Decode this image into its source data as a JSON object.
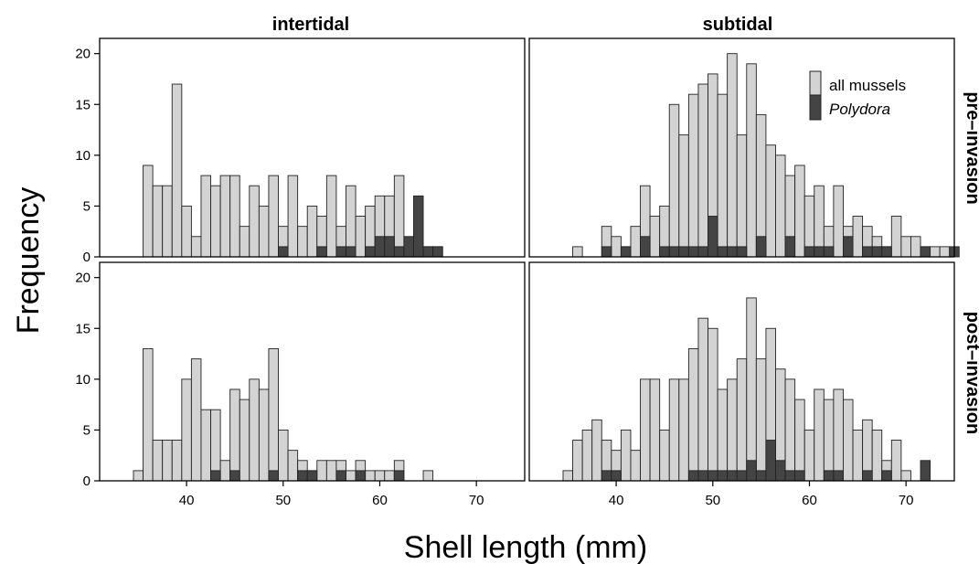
{
  "chart_data": {
    "type": "bar",
    "xlabel": "Shell length (mm)",
    "ylabel": "Frequency",
    "xlim": [
      31,
      75
    ],
    "ylim": [
      0,
      21.5
    ],
    "x_ticks": [
      40,
      50,
      60,
      70
    ],
    "y_ticks": [
      0,
      5,
      10,
      15,
      20
    ],
    "bin_width": 1,
    "column_labels": [
      "intertidal",
      "subtidal"
    ],
    "row_labels": [
      "pre–invasion",
      "post–invasion"
    ],
    "legend": {
      "position": "top-right",
      "entries": [
        {
          "label": "all mussels",
          "color": "#d3d3d3"
        },
        {
          "label": "Polydora",
          "color": "#444444"
        }
      ]
    },
    "colors": {
      "all": "#d3d3d3",
      "polydora": "#444444",
      "border": "#222222"
    },
    "panels": [
      {
        "column": "intertidal",
        "row": "pre–invasion",
        "all_mussels": [
          [
            36,
            9
          ],
          [
            37,
            7
          ],
          [
            38,
            7
          ],
          [
            39,
            17
          ],
          [
            40,
            5
          ],
          [
            41,
            2
          ],
          [
            42,
            8
          ],
          [
            43,
            7
          ],
          [
            44,
            8
          ],
          [
            45,
            8
          ],
          [
            46,
            3
          ],
          [
            47,
            7
          ],
          [
            48,
            5
          ],
          [
            49,
            8
          ],
          [
            50,
            3
          ],
          [
            51,
            8
          ],
          [
            52,
            3
          ],
          [
            53,
            5
          ],
          [
            54,
            4
          ],
          [
            55,
            8
          ],
          [
            56,
            3
          ],
          [
            57,
            7
          ],
          [
            58,
            4
          ],
          [
            59,
            5
          ],
          [
            60,
            6
          ],
          [
            61,
            6
          ],
          [
            62,
            8
          ],
          [
            63,
            1
          ],
          [
            64,
            1
          ],
          [
            65,
            1
          ],
          [
            66,
            1
          ]
        ],
        "polydora": [
          [
            50,
            1
          ],
          [
            54,
            1
          ],
          [
            56,
            1
          ],
          [
            57,
            1
          ],
          [
            59,
            1
          ],
          [
            60,
            2
          ],
          [
            61,
            2
          ],
          [
            62,
            1
          ],
          [
            63,
            2
          ],
          [
            64,
            6
          ],
          [
            65,
            1
          ],
          [
            66,
            1
          ]
        ]
      },
      {
        "column": "subtidal",
        "row": "pre–invasion",
        "all_mussels": [
          [
            36,
            1
          ],
          [
            39,
            3
          ],
          [
            40,
            2
          ],
          [
            41,
            1
          ],
          [
            42,
            3
          ],
          [
            43,
            7
          ],
          [
            44,
            4
          ],
          [
            45,
            5
          ],
          [
            46,
            15
          ],
          [
            47,
            12
          ],
          [
            48,
            16
          ],
          [
            49,
            17
          ],
          [
            50,
            18
          ],
          [
            51,
            16
          ],
          [
            52,
            20
          ],
          [
            53,
            12
          ],
          [
            54,
            19
          ],
          [
            55,
            14
          ],
          [
            56,
            11
          ],
          [
            57,
            10
          ],
          [
            58,
            8
          ],
          [
            59,
            9
          ],
          [
            60,
            6
          ],
          [
            61,
            7
          ],
          [
            62,
            3
          ],
          [
            63,
            7
          ],
          [
            64,
            3
          ],
          [
            65,
            4
          ],
          [
            66,
            3
          ],
          [
            67,
            2
          ],
          [
            68,
            1
          ],
          [
            69,
            4
          ],
          [
            70,
            2
          ],
          [
            71,
            2
          ],
          [
            72,
            1
          ],
          [
            73,
            1
          ],
          [
            74,
            1
          ]
        ],
        "polydora": [
          [
            39,
            1
          ],
          [
            41,
            1
          ],
          [
            43,
            2
          ],
          [
            45,
            1
          ],
          [
            46,
            1
          ],
          [
            47,
            1
          ],
          [
            48,
            1
          ],
          [
            49,
            1
          ],
          [
            50,
            4
          ],
          [
            51,
            1
          ],
          [
            52,
            1
          ],
          [
            53,
            1
          ],
          [
            55,
            2
          ],
          [
            58,
            2
          ],
          [
            60,
            1
          ],
          [
            61,
            1
          ],
          [
            62,
            1
          ],
          [
            64,
            2
          ],
          [
            66,
            1
          ],
          [
            67,
            1
          ],
          [
            68,
            1
          ],
          [
            72,
            1
          ],
          [
            75,
            1
          ]
        ]
      },
      {
        "column": "intertidal",
        "row": "post–invasion",
        "all_mussels": [
          [
            35,
            1
          ],
          [
            36,
            13
          ],
          [
            37,
            4
          ],
          [
            38,
            4
          ],
          [
            39,
            4
          ],
          [
            40,
            10
          ],
          [
            41,
            12
          ],
          [
            42,
            7
          ],
          [
            43,
            7
          ],
          [
            44,
            2
          ],
          [
            45,
            9
          ],
          [
            46,
            8
          ],
          [
            47,
            10
          ],
          [
            48,
            9
          ],
          [
            49,
            13
          ],
          [
            50,
            5
          ],
          [
            51,
            3
          ],
          [
            52,
            2
          ],
          [
            53,
            1
          ],
          [
            54,
            2
          ],
          [
            55,
            2
          ],
          [
            56,
            2
          ],
          [
            57,
            1
          ],
          [
            58,
            2
          ],
          [
            59,
            1
          ],
          [
            60,
            1
          ],
          [
            61,
            1
          ],
          [
            62,
            2
          ],
          [
            65,
            1
          ]
        ],
        "polydora": [
          [
            43,
            1
          ],
          [
            45,
            1
          ],
          [
            49,
            1
          ],
          [
            52,
            1
          ],
          [
            53,
            1
          ],
          [
            56,
            1
          ],
          [
            58,
            1
          ],
          [
            62,
            1
          ]
        ]
      },
      {
        "column": "subtidal",
        "row": "post–invasion",
        "all_mussels": [
          [
            35,
            1
          ],
          [
            36,
            4
          ],
          [
            37,
            5
          ],
          [
            38,
            6
          ],
          [
            39,
            4
          ],
          [
            40,
            3
          ],
          [
            41,
            5
          ],
          [
            42,
            3
          ],
          [
            43,
            10
          ],
          [
            44,
            10
          ],
          [
            45,
            5
          ],
          [
            46,
            10
          ],
          [
            47,
            10
          ],
          [
            48,
            13
          ],
          [
            49,
            16
          ],
          [
            50,
            15
          ],
          [
            51,
            9
          ],
          [
            52,
            10
          ],
          [
            53,
            12
          ],
          [
            54,
            18
          ],
          [
            55,
            12
          ],
          [
            56,
            15
          ],
          [
            57,
            11
          ],
          [
            58,
            10
          ],
          [
            59,
            8
          ],
          [
            60,
            5
          ],
          [
            61,
            9
          ],
          [
            62,
            8
          ],
          [
            63,
            9
          ],
          [
            64,
            8
          ],
          [
            65,
            5
          ],
          [
            66,
            6
          ],
          [
            67,
            5
          ],
          [
            68,
            2
          ],
          [
            69,
            4
          ],
          [
            70,
            1
          ]
        ],
        "polydora": [
          [
            39,
            1
          ],
          [
            40,
            1
          ],
          [
            48,
            1
          ],
          [
            49,
            1
          ],
          [
            50,
            1
          ],
          [
            51,
            1
          ],
          [
            52,
            1
          ],
          [
            53,
            1
          ],
          [
            54,
            2
          ],
          [
            55,
            1
          ],
          [
            56,
            4
          ],
          [
            57,
            2
          ],
          [
            58,
            1
          ],
          [
            59,
            1
          ],
          [
            62,
            1
          ],
          [
            63,
            1
          ],
          [
            66,
            1
          ],
          [
            68,
            1
          ],
          [
            72,
            2
          ]
        ]
      }
    ]
  }
}
